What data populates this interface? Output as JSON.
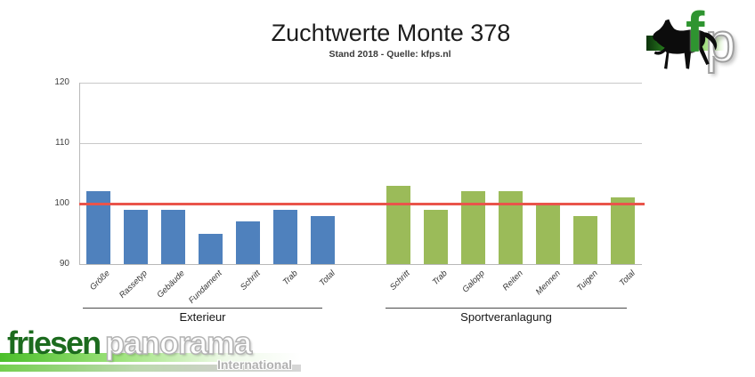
{
  "header": {
    "title": "Zuchtwerte Monte 378",
    "subtitle": "Stand 2018 - Quelle: kfps.nl"
  },
  "chart_data": {
    "type": "bar",
    "title": "Zuchtwerte Monte 378",
    "subtitle": "Stand 2018 - Quelle: kfps.nl",
    "ylim": [
      90,
      120
    ],
    "yticks": [
      90,
      100,
      110,
      120
    ],
    "grid": true,
    "legend": false,
    "reference_line": {
      "value": 100,
      "color": "#e9544b"
    },
    "groups": [
      {
        "label": "Exterieur",
        "color": "#4f81bd",
        "categories": [
          "Größe",
          "Rassetyp",
          "Gebäude",
          "Fundament",
          "Schritt",
          "Trab",
          "Total"
        ],
        "values": [
          102,
          99,
          99,
          95,
          97,
          99,
          98
        ]
      },
      {
        "label": "Sportveranlagung",
        "color": "#9bbb59",
        "categories": [
          "Schritt",
          "Trab",
          "Galopp",
          "Reiten",
          "Mennen",
          "Tuigen",
          "Total"
        ],
        "values": [
          103,
          99,
          102,
          102,
          100,
          98,
          101
        ]
      }
    ]
  },
  "logos": {
    "top_right": {
      "letter_f": "f",
      "letter_p": "p",
      "f_color": "#2e9430",
      "horse_icon": "friesian-horse-silhouette"
    },
    "bottom_left": {
      "word_green": "friesen",
      "word_outline": "panorama",
      "subline": "International",
      "green": "#1c6b1e"
    }
  }
}
